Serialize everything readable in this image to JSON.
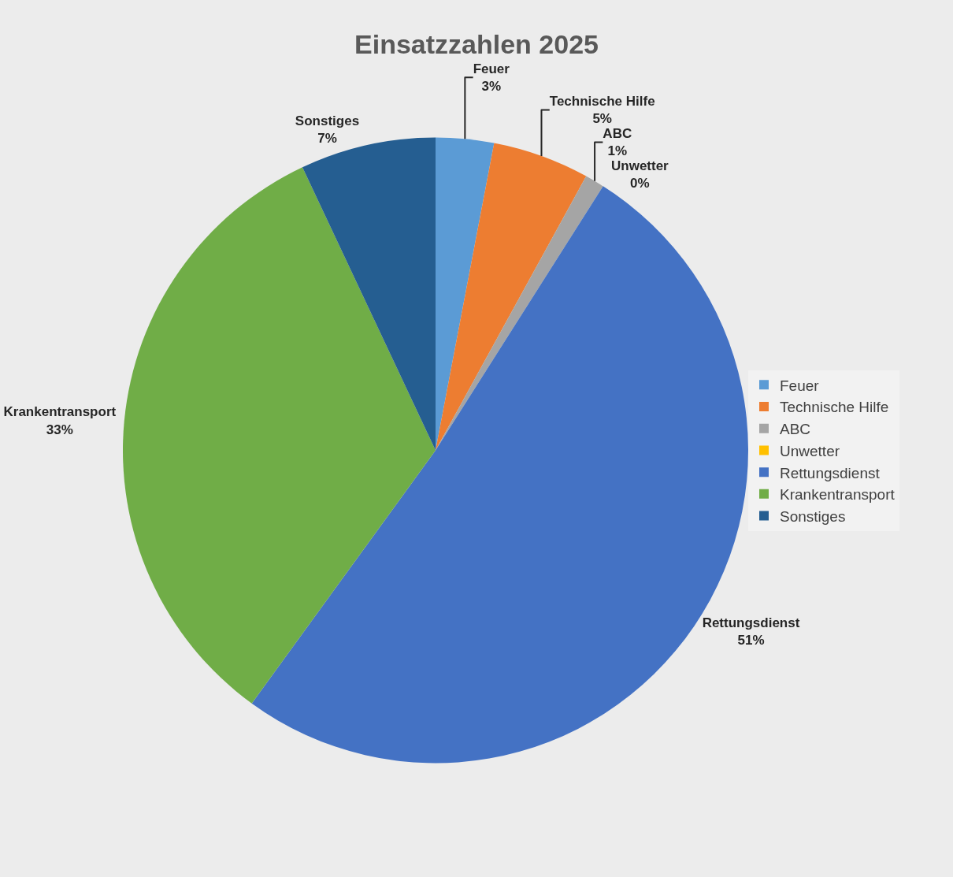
{
  "chart_data": {
    "type": "pie",
    "title": "Einsatzzahlen 2025",
    "categories": [
      "Feuer",
      "Technische Hilfe",
      "ABC",
      "Unwetter",
      "Rettungsdienst",
      "Krankentransport",
      "Sonstiges"
    ],
    "values": [
      3,
      5,
      1,
      0,
      51,
      33,
      7
    ],
    "value_labels": [
      "3%",
      "5%",
      "1%",
      "0%",
      "51%",
      "33%",
      "7%"
    ],
    "colors": [
      "#5b9bd5",
      "#ed7d31",
      "#a5a5a5",
      "#ffc000",
      "#4472c4",
      "#70ad47",
      "#255e91"
    ],
    "legend": "right"
  }
}
